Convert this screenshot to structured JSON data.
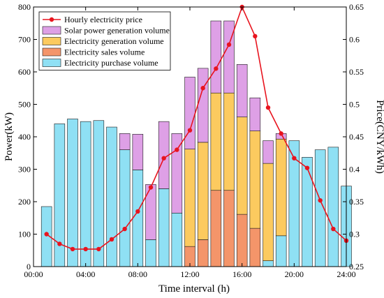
{
  "chart_data": {
    "type": "bar",
    "xlabel": "Time interval (h)",
    "ylabel": "Power(kW)",
    "ylabel_right": "Price(CNY/kWh)",
    "xlim": [
      0,
      24
    ],
    "ylim": [
      0,
      800
    ],
    "ylim_right": [
      0.25,
      0.65
    ],
    "x_ticks": [
      0,
      4,
      8,
      12,
      16,
      20,
      24
    ],
    "x_tick_labels": [
      "00:00",
      "04:00",
      "08:00",
      "12:00",
      "16:00",
      "20:00",
      "24:00"
    ],
    "y_ticks": [
      0,
      100,
      200,
      300,
      400,
      500,
      600,
      700,
      800
    ],
    "y_ticks_right": [
      0.25,
      0.3,
      0.35,
      0.4,
      0.45,
      0.5,
      0.55,
      0.6,
      0.65
    ],
    "y_tick_labels_right": [
      "0.25",
      "0.3",
      "0.35",
      "0.4",
      "0.45",
      "0.5",
      "0.55",
      "0.6",
      "0.65"
    ],
    "legend_position": "top-left",
    "grid": false,
    "hours": [
      1,
      2,
      3,
      4,
      5,
      6,
      7,
      8,
      9,
      10,
      11,
      12,
      13,
      14,
      15,
      16,
      17,
      18,
      19,
      20,
      21,
      22,
      23,
      24
    ],
    "series": [
      {
        "name": "Electricity purchase volume",
        "kind": "bar",
        "color": "#8fe0f4",
        "values": [
          185,
          440,
          455,
          447,
          450,
          430,
          360,
          298,
          83,
          240,
          165,
          0,
          0,
          0,
          0,
          0,
          0,
          18,
          95,
          388,
          337,
          360,
          368,
          248
        ]
      },
      {
        "name": "Electricity sales volume",
        "kind": "bar",
        "color": "#f4956a",
        "values": [
          0,
          0,
          0,
          0,
          0,
          0,
          0,
          0,
          0,
          0,
          0,
          62,
          83,
          235,
          235,
          161,
          118,
          0,
          0,
          0,
          0,
          0,
          0,
          0
        ]
      },
      {
        "name": "Electricity generation volume",
        "kind": "bar",
        "color": "#fcca5f",
        "values": [
          0,
          0,
          0,
          0,
          0,
          0,
          0,
          0,
          0,
          0,
          0,
          300,
          300,
          300,
          300,
          300,
          300,
          300,
          298,
          0,
          0,
          0,
          0,
          0
        ]
      },
      {
        "name": "Solar power generation volume",
        "kind": "bar",
        "color": "#dea0e6",
        "values": [
          0,
          0,
          0,
          0,
          0,
          0,
          50,
          110,
          170,
          207,
          245,
          222,
          228,
          222,
          222,
          162,
          102,
          70,
          17,
          0,
          0,
          0,
          0,
          0
        ]
      },
      {
        "name": "Hourly electricity price",
        "kind": "line",
        "color": "#e8141e",
        "x": [
          1,
          2,
          3,
          4,
          5,
          6,
          7,
          8,
          9,
          10,
          11,
          12,
          13,
          14,
          15,
          16,
          17,
          18,
          19,
          20,
          21,
          22,
          23,
          24
        ],
        "values": [
          0.3,
          0.285,
          0.277,
          0.277,
          0.277,
          0.292,
          0.308,
          0.335,
          0.372,
          0.417,
          0.43,
          0.46,
          0.525,
          0.555,
          0.592,
          0.65,
          0.605,
          0.495,
          0.455,
          0.417,
          0.402,
          0.352,
          0.308,
          0.29
        ]
      }
    ],
    "legend_order": [
      "Hourly electricity price",
      "Solar power generation volume",
      "Electricity generation volume",
      "Electricity sales volume",
      "Electricity purchase volume"
    ]
  }
}
